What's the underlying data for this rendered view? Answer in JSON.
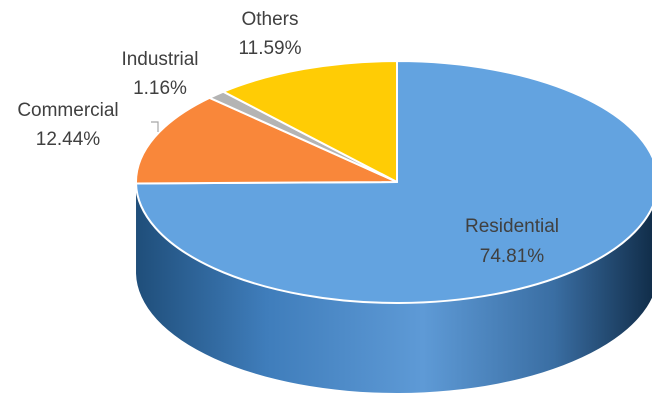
{
  "chart_data": {
    "type": "pie",
    "style": "3d",
    "title": "",
    "legend": "none",
    "slices": [
      {
        "label": "Residential",
        "value": 74.81,
        "value_label": "74.81%",
        "color": "#63A3E0",
        "side_color": "#2F6FAE"
      },
      {
        "label": "Commercial",
        "value": 12.44,
        "value_label": "12.44%",
        "color": "#F9873A",
        "side_color": "#C4611F"
      },
      {
        "label": "Industrial",
        "value": 1.16,
        "value_label": "1.16%",
        "color": "#B4B4B4",
        "side_color": "#888888"
      },
      {
        "label": "Others",
        "value": 11.59,
        "value_label": "11.59%",
        "color": "#FFCC05",
        "side_color": "#C99F00"
      }
    ]
  }
}
